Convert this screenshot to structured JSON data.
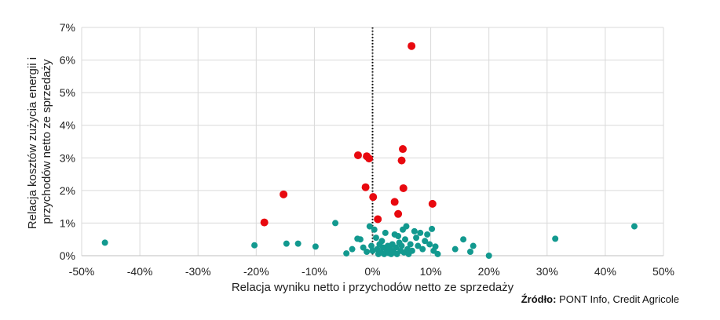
{
  "chart_data": {
    "type": "scatter",
    "xlabel": "Relacja wyniku netto i przychodów netto ze sprzedaży",
    "ylabel_lines": [
      "Relacja kosztów zużycia energii i",
      "przychodów netto ze sprzedaży"
    ],
    "xlim": [
      -50,
      50
    ],
    "ylim": [
      0,
      7
    ],
    "x_ticks": [
      -50,
      -40,
      -30,
      -20,
      -10,
      0,
      10,
      20,
      30,
      40,
      50
    ],
    "x_tick_labels": [
      "-50%",
      "-40%",
      "-30%",
      "-20%",
      "-10%",
      "0%",
      "10%",
      "20%",
      "30%",
      "40%",
      "50%"
    ],
    "y_ticks": [
      0,
      1,
      2,
      3,
      4,
      5,
      6,
      7
    ],
    "y_tick_labels": [
      "0%",
      "1%",
      "2%",
      "3%",
      "4%",
      "5%",
      "6%",
      "7%"
    ],
    "grid": true,
    "reference_line": {
      "x": 0,
      "style": "dotted",
      "color": "#000000"
    },
    "colors": {
      "teal": "#12998F",
      "red": "#E8090F",
      "grid": "#D9D9D9",
      "axis": "#BFBFBF"
    },
    "series": [
      {
        "color": "#12998F",
        "points": [
          [
            -46.0,
            0.4
          ],
          [
            -20.3,
            0.32
          ],
          [
            -14.8,
            0.37
          ],
          [
            -12.8,
            0.37
          ],
          [
            -9.8,
            0.28
          ],
          [
            -6.4,
            1.0
          ],
          [
            -4.5,
            0.07
          ],
          [
            -3.5,
            0.2
          ],
          [
            -2.6,
            0.52
          ],
          [
            -2.1,
            0.5
          ],
          [
            -1.6,
            0.25
          ],
          [
            -1.0,
            0.12
          ],
          [
            -0.5,
            0.9
          ],
          [
            -0.2,
            0.3
          ],
          [
            0.0,
            0.15
          ],
          [
            0.3,
            0.8
          ],
          [
            0.6,
            0.55
          ],
          [
            0.8,
            0.2
          ],
          [
            1.0,
            0.05
          ],
          [
            1.2,
            0.35
          ],
          [
            1.4,
            0.1
          ],
          [
            1.6,
            0.45
          ],
          [
            1.8,
            0.25
          ],
          [
            2.0,
            0.05
          ],
          [
            2.2,
            0.7
          ],
          [
            2.4,
            0.15
          ],
          [
            2.6,
            0.3
          ],
          [
            2.8,
            0.08
          ],
          [
            3.0,
            0.2
          ],
          [
            3.2,
            0.05
          ],
          [
            3.4,
            0.35
          ],
          [
            3.6,
            0.12
          ],
          [
            3.8,
            0.65
          ],
          [
            4.0,
            0.25
          ],
          [
            4.2,
            0.05
          ],
          [
            4.4,
            0.6
          ],
          [
            4.6,
            0.4
          ],
          [
            4.8,
            0.15
          ],
          [
            5.0,
            0.3
          ],
          [
            5.2,
            0.8
          ],
          [
            5.4,
            0.1
          ],
          [
            5.6,
            0.5
          ],
          [
            5.8,
            0.9
          ],
          [
            6.0,
            0.2
          ],
          [
            6.2,
            0.05
          ],
          [
            6.5,
            0.35
          ],
          [
            6.8,
            0.15
          ],
          [
            7.2,
            0.75
          ],
          [
            7.5,
            0.55
          ],
          [
            7.8,
            0.3
          ],
          [
            8.2,
            0.7
          ],
          [
            8.6,
            0.2
          ],
          [
            9.0,
            0.45
          ],
          [
            9.4,
            0.65
          ],
          [
            9.8,
            0.35
          ],
          [
            10.2,
            0.82
          ],
          [
            10.5,
            0.15
          ],
          [
            10.8,
            0.28
          ],
          [
            11.2,
            0.05
          ],
          [
            14.2,
            0.2
          ],
          [
            15.6,
            0.5
          ],
          [
            16.8,
            0.12
          ],
          [
            17.3,
            0.3
          ],
          [
            20.0,
            0.0
          ],
          [
            31.4,
            0.52
          ],
          [
            45.0,
            0.9
          ]
        ]
      },
      {
        "color": "#E8090F",
        "points": [
          [
            -18.6,
            1.02
          ],
          [
            -15.3,
            1.88
          ],
          [
            -2.5,
            3.08
          ],
          [
            -1.2,
            2.1
          ],
          [
            -1.0,
            3.05
          ],
          [
            -0.6,
            2.98
          ],
          [
            0.1,
            1.8
          ],
          [
            0.9,
            1.12
          ],
          [
            3.8,
            1.65
          ],
          [
            4.4,
            1.28
          ],
          [
            5.0,
            2.92
          ],
          [
            5.2,
            3.27
          ],
          [
            5.3,
            2.07
          ],
          [
            6.7,
            6.43
          ],
          [
            10.3,
            1.59
          ]
        ]
      }
    ]
  },
  "source": {
    "label": "Źródło:",
    "text": " PONT Info, Credit Agricole"
  }
}
